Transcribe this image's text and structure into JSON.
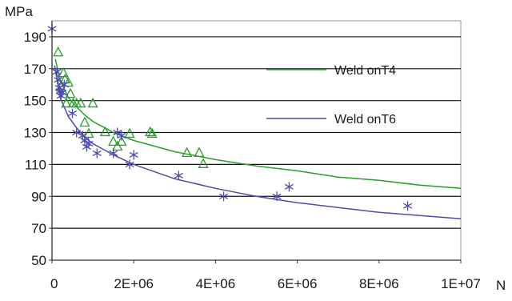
{
  "chart_data": {
    "type": "scatter",
    "xlabel": "N",
    "ylabel": "MPa",
    "xlim": [
      0,
      10000000
    ],
    "ylim": [
      50,
      200
    ],
    "x_ticks": [
      0,
      2000000,
      4000000,
      6000000,
      8000000,
      10000000
    ],
    "x_tick_labels": [
      "0",
      "2E+06",
      "4E+06",
      "6E+06",
      "8E+06",
      "1E+07"
    ],
    "y_ticks": [
      50,
      70,
      90,
      110,
      130,
      150,
      170,
      190
    ],
    "y_tick_labels": [
      "50",
      "70",
      "90",
      "110",
      "130",
      "150",
      "170",
      "190"
    ],
    "grid": "horizontal",
    "legend_placement": "right",
    "series": [
      {
        "name": "Weld onT4",
        "color": "#2a9d2a",
        "marker": "triangle",
        "points": [
          [
            150000,
            180
          ],
          [
            220000,
            158
          ],
          [
            280000,
            167
          ],
          [
            320000,
            163
          ],
          [
            350000,
            148
          ],
          [
            400000,
            161
          ],
          [
            450000,
            154
          ],
          [
            520000,
            148
          ],
          [
            600000,
            148
          ],
          [
            700000,
            148
          ],
          [
            800000,
            136
          ],
          [
            900000,
            129
          ],
          [
            1000000,
            148
          ],
          [
            1300000,
            130
          ],
          [
            1500000,
            124
          ],
          [
            1600000,
            121
          ],
          [
            1700000,
            124
          ],
          [
            1900000,
            129
          ],
          [
            2400000,
            130
          ],
          [
            2450000,
            129
          ],
          [
            3300000,
            117
          ],
          [
            3600000,
            117
          ],
          [
            3700000,
            110
          ]
        ],
        "fit": [
          [
            80000,
            176
          ],
          [
            200000,
            163
          ],
          [
            400000,
            152
          ],
          [
            600000,
            146
          ],
          [
            800000,
            141
          ],
          [
            1000000,
            137
          ],
          [
            1500000,
            130
          ],
          [
            2000000,
            125
          ],
          [
            3000000,
            118
          ],
          [
            4000000,
            113
          ],
          [
            5000000,
            109
          ],
          [
            6000000,
            106
          ],
          [
            7000000,
            102
          ],
          [
            8000000,
            100
          ],
          [
            9000000,
            97
          ],
          [
            10000000,
            95
          ]
        ]
      },
      {
        "name": "Weld onT6",
        "color": "#4a4ab0",
        "marker": "asterisk",
        "points": [
          [
            0,
            195
          ],
          [
            120000,
            168
          ],
          [
            150000,
            163
          ],
          [
            180000,
            158
          ],
          [
            200000,
            156
          ],
          [
            220000,
            153
          ],
          [
            250000,
            155
          ],
          [
            300000,
            160
          ],
          [
            500000,
            142
          ],
          [
            600000,
            130
          ],
          [
            750000,
            128
          ],
          [
            800000,
            125
          ],
          [
            850000,
            121
          ],
          [
            900000,
            123
          ],
          [
            1100000,
            117
          ],
          [
            1500000,
            117
          ],
          [
            1600000,
            130
          ],
          [
            1700000,
            128
          ],
          [
            1900000,
            110
          ],
          [
            2000000,
            116
          ],
          [
            3100000,
            103
          ],
          [
            4200000,
            90
          ],
          [
            5500000,
            90
          ],
          [
            5800000,
            96
          ],
          [
            8700000,
            84
          ]
        ],
        "fit": [
          [
            60000,
            172
          ],
          [
            200000,
            152
          ],
          [
            400000,
            140
          ],
          [
            600000,
            133
          ],
          [
            800000,
            127
          ],
          [
            1000000,
            123
          ],
          [
            1500000,
            116
          ],
          [
            2000000,
            110
          ],
          [
            3000000,
            101
          ],
          [
            4000000,
            95
          ],
          [
            5000000,
            90
          ],
          [
            6000000,
            86
          ],
          [
            7000000,
            83
          ],
          [
            8000000,
            80
          ],
          [
            9000000,
            78
          ],
          [
            10000000,
            76
          ]
        ]
      }
    ]
  }
}
